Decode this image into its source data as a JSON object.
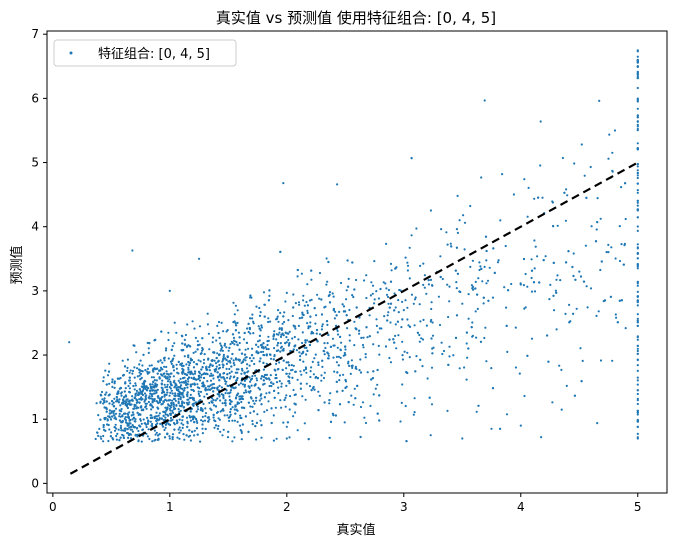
{
  "chart_data": {
    "type": "scatter",
    "title": "真实值 vs 预测值 使用特征组合: [0, 4, 5]",
    "xlabel": "真实值",
    "ylabel": "预测值",
    "xlim": [
      -0.05,
      5.25
    ],
    "ylim": [
      -0.15,
      7.05
    ],
    "xticks": [
      0,
      1,
      2,
      3,
      4,
      5
    ],
    "yticks": [
      0,
      1,
      2,
      3,
      4,
      5,
      6,
      7
    ],
    "grid": false,
    "legend_position": "top-left",
    "series": [
      {
        "name": "特征组合: [0, 4, 5]",
        "color": "#1f77b4",
        "marker": "point",
        "approximate_points": 3000,
        "trend": "prediction roughly 0.55*true + 0.85 with spread growing with true value; many points clipped at true value 5.0",
        "sample_points": [
          [
            0.14,
            2.2
          ],
          [
            0.68,
            3.63
          ],
          [
            1.0,
            3.0
          ],
          [
            1.25,
            3.5
          ],
          [
            1.97,
            4.68
          ],
          [
            2.43,
            4.66
          ],
          [
            3.46,
            4.48
          ],
          [
            3.84,
            4.82
          ],
          [
            4.03,
            4.74
          ],
          [
            4.17,
            5.64
          ],
          [
            4.36,
            5.07
          ],
          [
            4.67,
            5.96
          ],
          [
            4.75,
            5.06
          ],
          [
            0.5,
            1.1
          ],
          [
            0.6,
            1.3
          ],
          [
            0.8,
            1.5
          ],
          [
            1.0,
            1.5
          ],
          [
            1.2,
            1.7
          ],
          [
            1.5,
            1.9
          ],
          [
            1.8,
            2.0
          ],
          [
            2.0,
            2.2
          ],
          [
            2.3,
            2.4
          ],
          [
            2.6,
            2.6
          ],
          [
            3.0,
            2.7
          ],
          [
            3.5,
            2.8
          ],
          [
            4.0,
            3.1
          ],
          [
            4.5,
            3.3
          ],
          [
            1.0,
            0.7
          ],
          [
            1.6,
            0.9
          ],
          [
            2.0,
            0.7
          ],
          [
            3.5,
            0.7
          ],
          [
            3.75,
            0.85
          ],
          [
            4.0,
            0.9
          ],
          [
            4.35,
            1.15
          ],
          [
            5.0,
            0.7
          ],
          [
            5.0,
            6.75
          ]
        ]
      }
    ],
    "reference_line": {
      "style": "dashed",
      "color": "#000000",
      "x": [
        0.15,
        5.0
      ],
      "y": [
        0.15,
        5.0
      ]
    }
  }
}
